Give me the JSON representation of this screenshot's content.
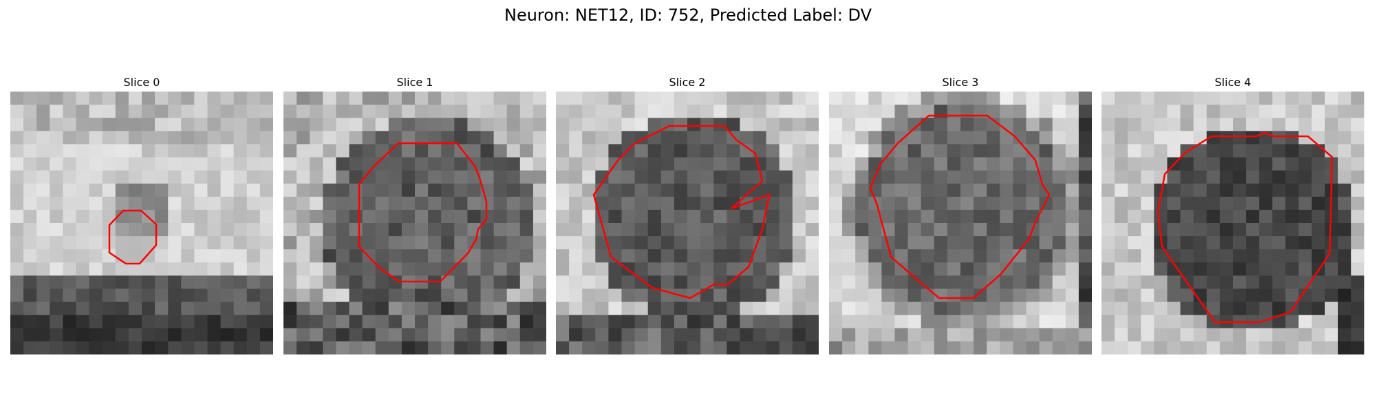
{
  "figure": {
    "title": "Neuron: NET12, ID: 752, Predicted Label: DV"
  },
  "panels": [
    {
      "title": "Slice 0"
    },
    {
      "title": "Slice 1"
    },
    {
      "title": "Slice 2"
    },
    {
      "title": "Slice 3"
    },
    {
      "title": "Slice 4"
    }
  ],
  "colors": {
    "contour": "#ff0000",
    "background": "#ffffff"
  }
}
